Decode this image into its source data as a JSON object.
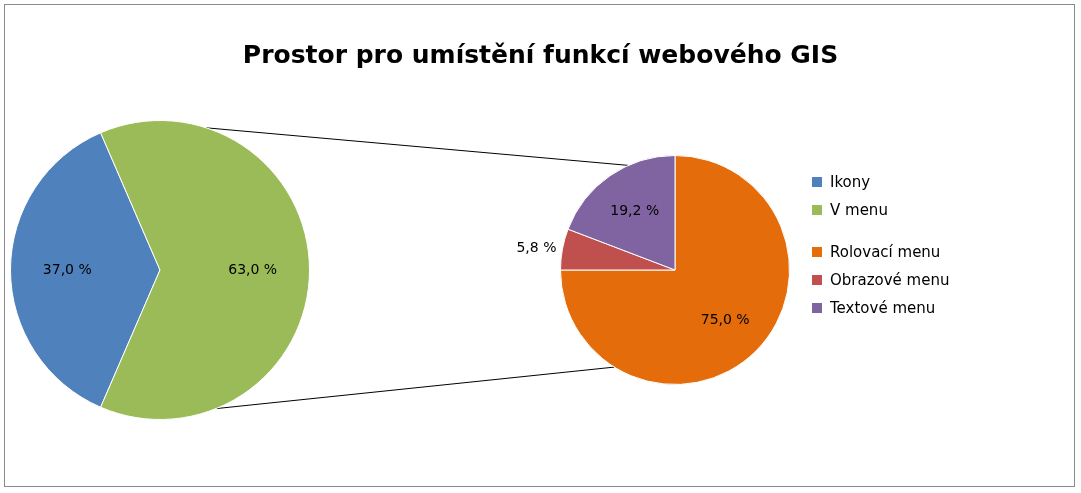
{
  "chart_data": [
    {
      "type": "pie",
      "title": "Prostor pro umístění funkcí webového GIS",
      "categories": [
        "Ikony",
        "V menu"
      ],
      "values": [
        37,
        63
      ],
      "colors": [
        "#4f81bd",
        "#9bbb59"
      ],
      "value_labels": [
        "37,0 %",
        "63,0 %"
      ],
      "legend": "right"
    },
    {
      "type": "pie",
      "categories": [
        "Rolovací menu",
        "Obrazové menu",
        "Textové menu"
      ],
      "values": [
        75,
        5.8,
        19.2
      ],
      "colors": [
        "#e46c0a",
        "#c0504d",
        "#8064a2"
      ],
      "value_labels": [
        "75,0 %",
        "5,8 %",
        "19,2 %"
      ],
      "legend": "right"
    }
  ]
}
